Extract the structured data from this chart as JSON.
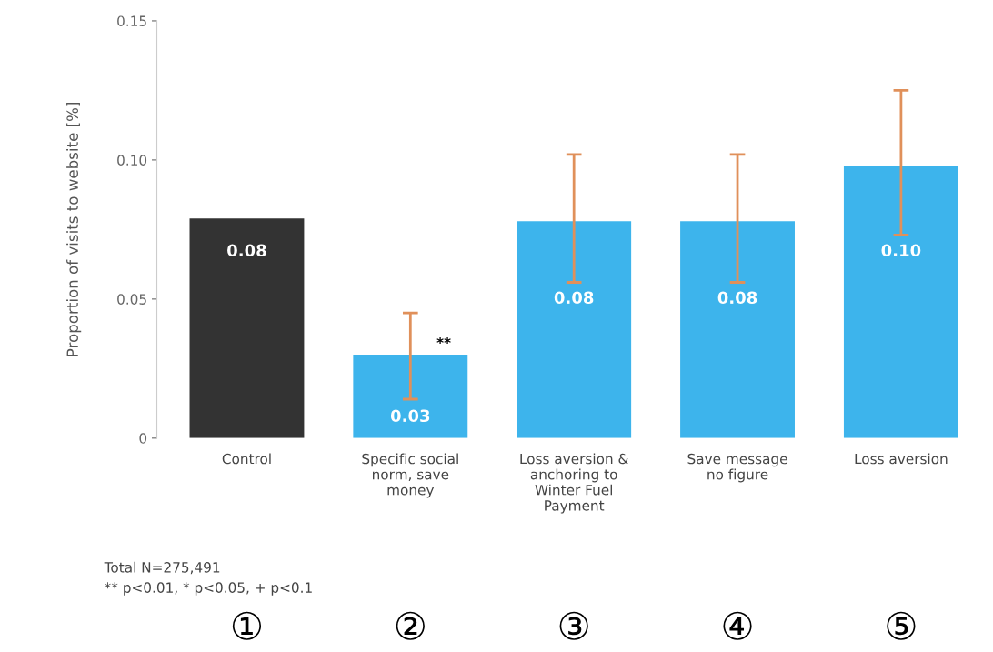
{
  "chart_data": {
    "type": "bar",
    "categories": [
      "Control",
      "Specific social\nnorm, save\nmoney",
      "Loss aversion &\nanchoring to\nWinter Fuel\nPayment",
      "Save message\nno figure",
      "Loss aversion"
    ],
    "values": [
      0.079,
      0.03,
      0.078,
      0.078,
      0.098
    ],
    "colors": [
      "#333333",
      "#3db4ec",
      "#3db4ec",
      "#3db4ec",
      "#3db4ec"
    ],
    "value_labels": [
      "0.08",
      "0.03",
      "0.08",
      "0.08",
      "0.10"
    ],
    "errors": [
      null,
      [
        0.014,
        0.045
      ],
      [
        0.056,
        0.102
      ],
      [
        0.056,
        0.102
      ],
      [
        0.073,
        0.125
      ]
    ],
    "ylabel": "Proportion of visits to website [%]",
    "ylim": [
      0,
      0.15
    ],
    "yticks": [
      0,
      0.05,
      {
        "value": 0.1,
        "label": "0.10"
      },
      0.15
    ],
    "grid": false,
    "annotations": [
      "**",
      "Total N=275,491",
      "** p<0.01, * p<0.05, + p<0.1",
      "①",
      "②",
      "③",
      "④",
      "⑤"
    ]
  }
}
